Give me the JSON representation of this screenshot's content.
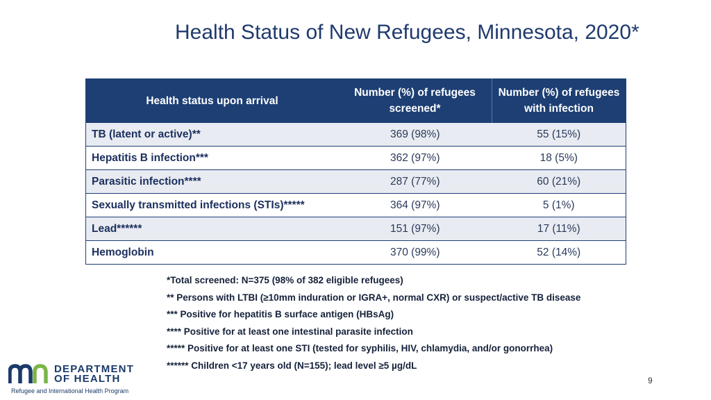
{
  "title": "Health Status of New Refugees, Minnesota, 2020*",
  "table": {
    "headers": [
      "Health status upon arrival",
      "Number (%) of refugees screened*",
      "Number (%) of refugees with infection"
    ],
    "rows": [
      {
        "label": "TB (latent or active)**",
        "screened": "369 (98%)",
        "infection": "55 (15%)"
      },
      {
        "label": "Hepatitis B infection***",
        "screened": "362 (97%)",
        "infection": "18 (5%)"
      },
      {
        "label": "Parasitic infection****",
        "screened": "287 (77%)",
        "infection": "60 (21%)"
      },
      {
        "label": "Sexually transmitted infections (STIs)*****",
        "screened": "364 (97%)",
        "infection": "5 (1%)"
      },
      {
        "label": "Lead******",
        "screened": "151 (97%)",
        "infection": "17 (11%)"
      },
      {
        "label": "Hemoglobin",
        "screened": "370 (99%)",
        "infection": "52 (14%)"
      }
    ]
  },
  "notes": [
    "*Total screened: N=375 (98% of 382 eligible refugees)",
    "** Persons with LTBI (≥10mm induration or IGRA+, normal CXR) or suspect/active TB disease",
    "*** Positive for hepatitis B surface antigen (HBsAg)",
    "**** Positive for at least one intestinal parasite infection",
    "***** Positive for at least one STI (tested for syphilis, HIV, chlamydia, and/or gonorrhea)",
    "****** Children <17 years old (N=155); lead level ≥5 µg/dL"
  ],
  "logo": {
    "line1": "DEPARTMENT",
    "line2": "OF HEALTH",
    "program": "Refugee and International Health Program"
  },
  "page_number": "9",
  "colors": {
    "header_bg": "#1d3f74",
    "title": "#1f3a6e",
    "row_shade": "#e8ebf1",
    "logo_blue": "#1b3a6a",
    "logo_green": "#7ab648"
  }
}
